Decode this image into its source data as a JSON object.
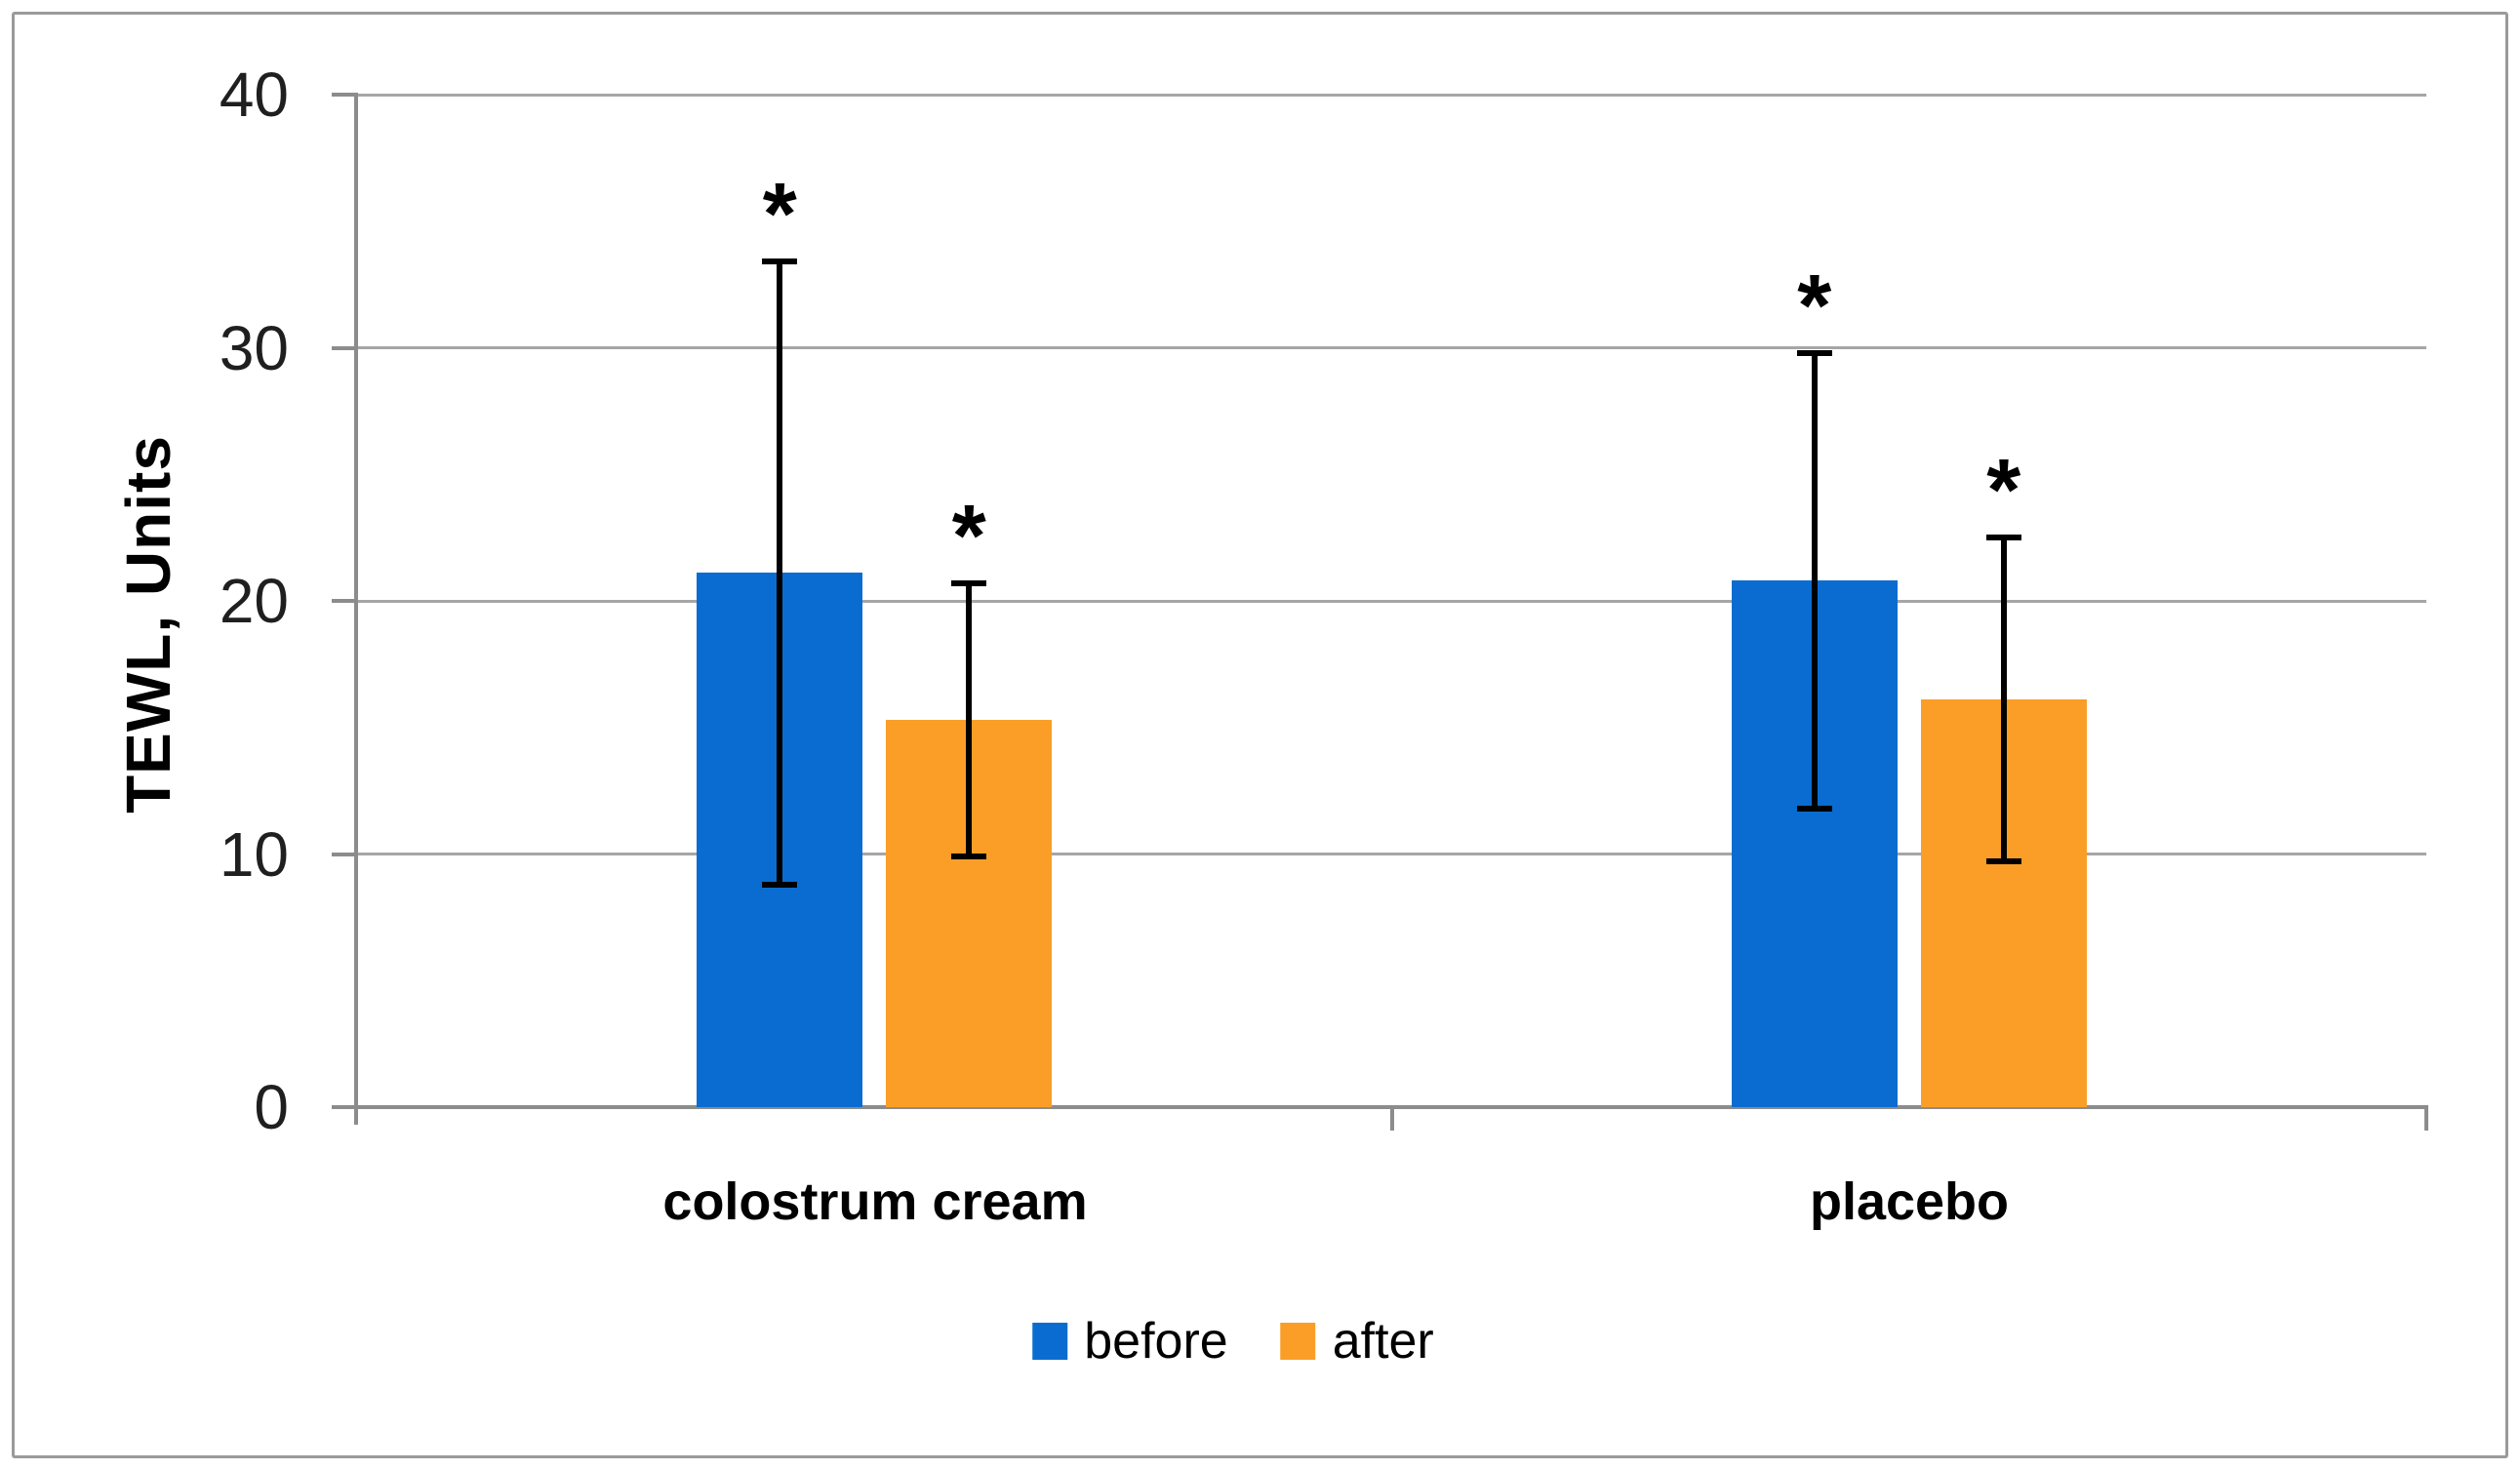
{
  "chart_data": {
    "type": "bar",
    "title": "",
    "xlabel": "",
    "ylabel": "TEWL, Units",
    "categories": [
      "colostrum cream",
      "placebo"
    ],
    "series": [
      {
        "name": "before",
        "color": "#0a6cd0",
        "values": [
          21.1,
          20.8
        ],
        "error": [
          12.3,
          9.0
        ],
        "significance": [
          "*",
          "*"
        ]
      },
      {
        "name": "after",
        "color": "#fa9e28",
        "values": [
          15.3,
          16.1
        ],
        "error": [
          5.4,
          6.4
        ],
        "significance": [
          "*",
          "*"
        ]
      }
    ],
    "ylim": [
      0,
      40
    ],
    "yticks": [
      0,
      10,
      20,
      30,
      40
    ],
    "grid": true,
    "legend_position": "bottom",
    "error_bars": "symmetric with caps",
    "annotation_note": "asterisk above each error bar"
  },
  "colors": {
    "before": "#0a6cd0",
    "after": "#fa9e28",
    "gridline": "#a6a6a6",
    "axis": "#8c8c8c",
    "text": "#000000",
    "figure_border": "#9a9a9a"
  }
}
